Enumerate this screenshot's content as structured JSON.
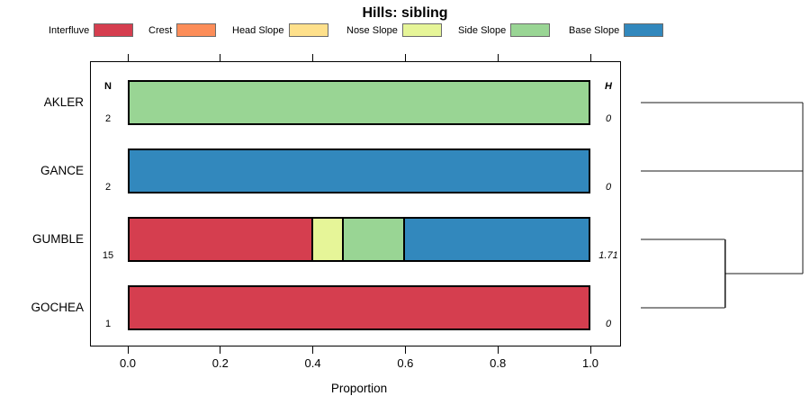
{
  "title": "Hills: sibling",
  "chart_data": {
    "type": "bar",
    "orientation": "horizontal",
    "stacked": true,
    "title": "Hills: sibling",
    "xlabel": "Proportion",
    "xlim": [
      0,
      1
    ],
    "xticks": [
      "0.0",
      "0.2",
      "0.4",
      "0.6",
      "0.8",
      "1.0"
    ],
    "legend_position": "top",
    "grid": false,
    "classes": [
      {
        "label": "Interfluve",
        "color": "#d53e4f"
      },
      {
        "label": "Crest",
        "color": "#fc8d59"
      },
      {
        "label": "Head Slope",
        "color": "#fee08b"
      },
      {
        "label": "Nose Slope",
        "color": "#e6f598"
      },
      {
        "label": "Side Slope",
        "color": "#99d594"
      },
      {
        "label": "Base Slope",
        "color": "#3288bd"
      }
    ],
    "columns": {
      "n_header": "N",
      "h_header": "H"
    },
    "rows": [
      {
        "label": "AKLER",
        "n": "2",
        "h": "0",
        "segments": [
          {
            "class": "Side Slope",
            "value": 1.0
          }
        ]
      },
      {
        "label": "GANCE",
        "n": "2",
        "h": "0",
        "segments": [
          {
            "class": "Base Slope",
            "value": 1.0
          }
        ]
      },
      {
        "label": "GUMBLE",
        "n": "15",
        "h": "1.71",
        "segments": [
          {
            "class": "Interfluve",
            "value": 0.4
          },
          {
            "class": "Nose Slope",
            "value": 0.0667
          },
          {
            "class": "Side Slope",
            "value": 0.1333
          },
          {
            "class": "Base Slope",
            "value": 0.4
          }
        ]
      },
      {
        "label": "GOCHEA",
        "n": "1",
        "h": "0",
        "segments": [
          {
            "class": "Interfluve",
            "value": 1.0
          }
        ]
      }
    ],
    "dendrogram": {
      "joins": [
        {
          "members": [
            "AKLER",
            "GANCE"
          ],
          "rel_height": 1.0
        },
        {
          "members": [
            "GUMBLE",
            "GOCHEA"
          ],
          "rel_height": 0.52
        },
        {
          "members": [
            "join0",
            "join1"
          ],
          "rel_height": 1.0
        }
      ]
    }
  }
}
